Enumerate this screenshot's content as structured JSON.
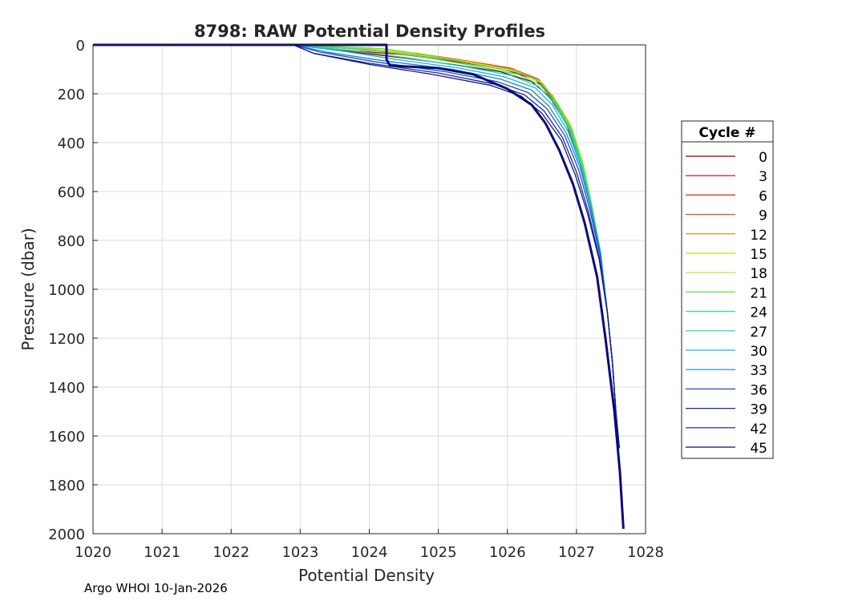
{
  "footer": "Argo WHOI 10-Jan-2026",
  "chart_data": {
    "type": "line",
    "title": "8798: RAW Potential Density Profiles",
    "xlabel": "Potential Density",
    "ylabel": "Pressure (dbar)",
    "xlim": [
      1020,
      1028
    ],
    "ylim": [
      0,
      2000
    ],
    "y_reversed": true,
    "grid": true,
    "x_ticks": [
      1020,
      1021,
      1022,
      1023,
      1024,
      1025,
      1026,
      1027,
      1028
    ],
    "y_ticks": [
      0,
      200,
      400,
      600,
      800,
      1000,
      1200,
      1400,
      1600,
      1800,
      2000
    ],
    "legend": {
      "title": "Cycle #",
      "placement": "right-outside",
      "entries": [
        {
          "label": "0",
          "color": "#8b0000"
        },
        {
          "label": "3",
          "color": "#c80000"
        },
        {
          "label": "6",
          "color": "#e61e1e"
        },
        {
          "label": "9",
          "color": "#f0501e"
        },
        {
          "label": "12",
          "color": "#d28c00"
        },
        {
          "label": "15",
          "color": "#e6d200"
        },
        {
          "label": "18",
          "color": "#b4e61e"
        },
        {
          "label": "21",
          "color": "#5ae63c"
        },
        {
          "label": "24",
          "color": "#28e678"
        },
        {
          "label": "27",
          "color": "#1ed2b4"
        },
        {
          "label": "30",
          "color": "#14b4e6"
        },
        {
          "label": "33",
          "color": "#1e82d2"
        },
        {
          "label": "36",
          "color": "#1e50be"
        },
        {
          "label": "39",
          "color": "#1428a0"
        },
        {
          "label": "42",
          "color": "#14148c"
        },
        {
          "label": "45",
          "color": "#0a0a78"
        }
      ]
    },
    "series": [
      {
        "name": "0",
        "color": "#8b0000",
        "x": [
          1022.9,
          1023.5,
          1024.4,
          1025.2,
          1025.9,
          1026.35,
          1026.6,
          1026.85,
          1027.05,
          1027.2,
          1027.35,
          1027.45,
          1027.52,
          1027.57,
          1027.62
        ],
        "y": [
          0,
          20,
          50,
          80,
          110,
          150,
          210,
          320,
          480,
          650,
          850,
          1100,
          1300,
          1500,
          1650
        ]
      },
      {
        "name": "3",
        "color": "#c80000",
        "x": [
          1022.9,
          1023.6,
          1024.5,
          1025.3,
          1025.95,
          1026.4,
          1026.62,
          1026.85,
          1027.05,
          1027.2,
          1027.35,
          1027.45,
          1027.52,
          1027.57,
          1027.62
        ],
        "y": [
          0,
          20,
          40,
          70,
          100,
          140,
          210,
          320,
          480,
          650,
          850,
          1100,
          1300,
          1500,
          1650
        ]
      },
      {
        "name": "6",
        "color": "#e61e1e",
        "x": [
          1022.9,
          1023.7,
          1024.6,
          1025.35,
          1026.0,
          1026.42,
          1026.63,
          1026.86,
          1027.06,
          1027.2,
          1027.35,
          1027.45,
          1027.52,
          1027.57,
          1027.62
        ],
        "y": [
          0,
          15,
          35,
          65,
          95,
          140,
          210,
          320,
          480,
          650,
          850,
          1100,
          1300,
          1500,
          1650
        ]
      },
      {
        "name": "9",
        "color": "#f0501e",
        "x": [
          1022.9,
          1023.8,
          1024.7,
          1025.4,
          1026.05,
          1026.45,
          1026.65,
          1026.88,
          1027.07,
          1027.21,
          1027.35,
          1027.45,
          1027.52,
          1027.57,
          1027.62
        ],
        "y": [
          0,
          15,
          35,
          65,
          95,
          140,
          210,
          320,
          480,
          650,
          850,
          1100,
          1300,
          1500,
          1650
        ]
      },
      {
        "name": "12",
        "color": "#d28c00",
        "x": [
          1022.9,
          1023.8,
          1024.6,
          1025.4,
          1026.05,
          1026.45,
          1026.66,
          1026.9,
          1027.08,
          1027.21,
          1027.35,
          1027.45,
          1027.52,
          1027.57,
          1027.62
        ],
        "y": [
          0,
          15,
          40,
          70,
          100,
          145,
          210,
          320,
          480,
          650,
          850,
          1100,
          1300,
          1500,
          1650
        ]
      },
      {
        "name": "15",
        "color": "#e6d200",
        "x": [
          1022.9,
          1023.9,
          1024.7,
          1025.45,
          1026.1,
          1026.48,
          1026.68,
          1026.92,
          1027.09,
          1027.22,
          1027.35,
          1027.45,
          1027.52,
          1027.57,
          1027.62
        ],
        "y": [
          0,
          15,
          40,
          70,
          105,
          150,
          220,
          330,
          480,
          650,
          850,
          1100,
          1300,
          1500,
          1650
        ]
      },
      {
        "name": "18",
        "color": "#b4e61e",
        "x": [
          1022.9,
          1024.0,
          1024.8,
          1025.5,
          1026.15,
          1026.5,
          1026.7,
          1026.93,
          1027.1,
          1027.22,
          1027.35,
          1027.45,
          1027.52,
          1027.57,
          1027.62
        ],
        "y": [
          0,
          15,
          40,
          75,
          110,
          155,
          230,
          340,
          490,
          650,
          850,
          1100,
          1300,
          1500,
          1650
        ]
      },
      {
        "name": "21",
        "color": "#5ae63c",
        "x": [
          1022.9,
          1024.2,
          1024.9,
          1025.55,
          1026.2,
          1026.52,
          1026.72,
          1026.94,
          1027.1,
          1027.22,
          1027.35,
          1027.45,
          1027.52,
          1027.57,
          1027.62
        ],
        "y": [
          0,
          15,
          45,
          80,
          115,
          160,
          240,
          350,
          500,
          660,
          850,
          1100,
          1300,
          1500,
          1650
        ]
      },
      {
        "name": "24",
        "color": "#28e678",
        "x": [
          1022.9,
          1024.0,
          1024.8,
          1025.5,
          1026.15,
          1026.48,
          1026.7,
          1026.92,
          1027.09,
          1027.22,
          1027.35,
          1027.45,
          1027.52,
          1027.57,
          1027.62
        ],
        "y": [
          0,
          20,
          50,
          85,
          120,
          165,
          240,
          350,
          500,
          660,
          850,
          1100,
          1300,
          1500,
          1650
        ]
      },
      {
        "name": "27",
        "color": "#1ed2b4",
        "x": [
          1022.9,
          1023.8,
          1024.6,
          1025.4,
          1026.05,
          1026.45,
          1026.68,
          1026.9,
          1027.08,
          1027.21,
          1027.35,
          1027.45,
          1027.52,
          1027.57,
          1027.62
        ],
        "y": [
          0,
          25,
          55,
          90,
          125,
          170,
          240,
          350,
          500,
          660,
          850,
          1100,
          1300,
          1500,
          1650
        ]
      },
      {
        "name": "30",
        "color": "#14b4e6",
        "x": [
          1022.9,
          1023.6,
          1024.4,
          1025.3,
          1025.95,
          1026.4,
          1026.65,
          1026.88,
          1027.07,
          1027.21,
          1027.35,
          1027.45,
          1027.52,
          1027.57,
          1027.62
        ],
        "y": [
          0,
          25,
          60,
          95,
          130,
          175,
          245,
          355,
          500,
          660,
          850,
          1100,
          1300,
          1500,
          1650
        ]
      },
      {
        "name": "33",
        "color": "#1e82d2",
        "x": [
          1022.9,
          1023.4,
          1024.2,
          1025.2,
          1025.9,
          1026.35,
          1026.6,
          1026.85,
          1027.05,
          1027.2,
          1027.34,
          1027.45,
          1027.52,
          1027.57,
          1027.62
        ],
        "y": [
          0,
          30,
          65,
          100,
          140,
          185,
          250,
          360,
          500,
          660,
          850,
          1100,
          1300,
          1500,
          1650
        ]
      },
      {
        "name": "36",
        "color": "#1e50be",
        "x": [
          1022.9,
          1023.3,
          1024.1,
          1025.1,
          1025.85,
          1026.3,
          1026.57,
          1026.83,
          1027.03,
          1027.19,
          1027.34,
          1027.45,
          1027.52,
          1027.57,
          1027.62
        ],
        "y": [
          0,
          30,
          70,
          110,
          150,
          195,
          260,
          370,
          510,
          670,
          860,
          1100,
          1300,
          1500,
          1650
        ]
      },
      {
        "name": "39",
        "color": "#1428a0",
        "x": [
          1022.9,
          1023.2,
          1024.0,
          1025.0,
          1025.8,
          1026.25,
          1026.53,
          1026.8,
          1027.0,
          1027.17,
          1027.33,
          1027.45,
          1027.52,
          1027.57,
          1027.62
        ],
        "y": [
          0,
          35,
          75,
          115,
          160,
          205,
          270,
          380,
          520,
          680,
          870,
          1100,
          1300,
          1500,
          1650
        ]
      },
      {
        "name": "42",
        "color": "#14148c",
        "x": [
          1022.9,
          1023.2,
          1024.0,
          1024.9,
          1025.75,
          1026.2,
          1026.5,
          1026.78,
          1026.98,
          1027.16,
          1027.33,
          1027.45,
          1027.52,
          1027.57,
          1027.62
        ],
        "y": [
          0,
          35,
          80,
          120,
          165,
          210,
          280,
          390,
          530,
          690,
          880,
          1100,
          1300,
          1500,
          1650
        ]
      },
      {
        "name": "45",
        "color": "#0a0a78",
        "x": [
          1020.0,
          1024.25,
          1024.25,
          1024.3,
          1025.0,
          1025.5,
          1026.0,
          1026.35,
          1026.55,
          1026.75,
          1026.95,
          1027.12,
          1027.3,
          1027.42,
          1027.55,
          1027.63,
          1027.68
        ],
        "y": [
          0,
          0,
          60,
          85,
          95,
          120,
          180,
          245,
          320,
          430,
          570,
          730,
          950,
          1200,
          1500,
          1750,
          1980
        ]
      }
    ]
  }
}
